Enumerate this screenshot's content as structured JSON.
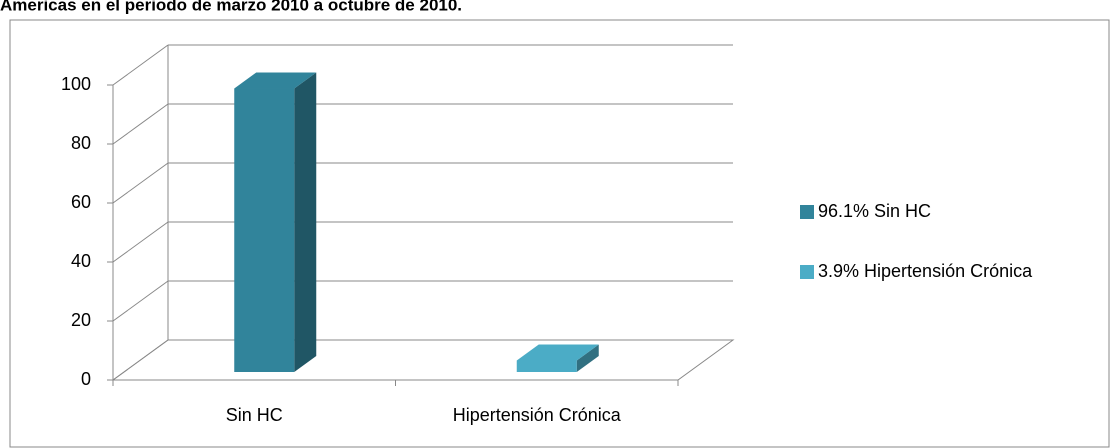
{
  "chart_data": {
    "type": "bar3d",
    "title": "Americas en el periodo de marzo 2010 a octubre de 2010.",
    "categories": [
      "Sin HC",
      "Hipertensión Crónica"
    ],
    "series": [
      {
        "name": "96.1% Sin HC",
        "color": "#31849b",
        "values": [
          96.1,
          null
        ]
      },
      {
        "name": "3.9% Hipertensión Crónica",
        "color": "#4bacc6",
        "values": [
          null,
          3.9
        ]
      }
    ],
    "ylim": [
      0,
      100
    ],
    "yticks": [
      0,
      20,
      40,
      60,
      80,
      100
    ],
    "grid": true,
    "legend": "right"
  }
}
